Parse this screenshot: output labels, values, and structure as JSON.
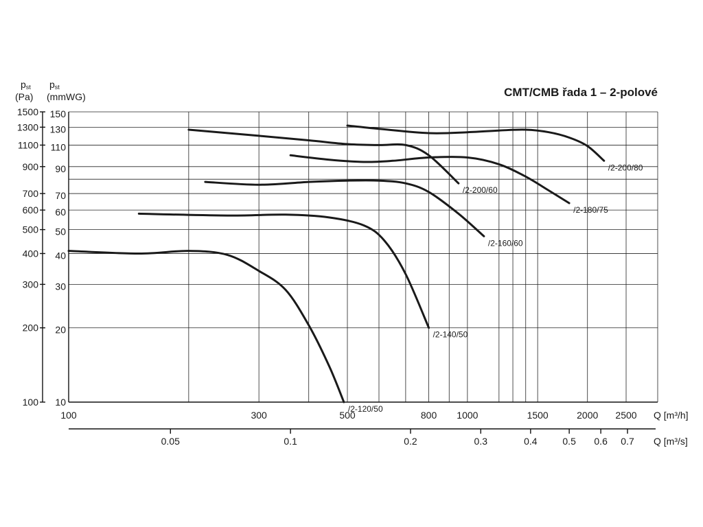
{
  "chart_data": {
    "type": "line",
    "title": "CMT/CMB řada 1 – 2-polové",
    "x_scale": "log",
    "y_scale": "log",
    "grid": true,
    "y_axis_pa": {
      "label_sym": "p",
      "label_sub": "st",
      "label_unit": "(Pa)",
      "range": [
        100,
        1500
      ],
      "ticks": [
        "1500",
        "1300",
        "1100",
        "900",
        "700",
        "600",
        "500",
        "400",
        "300",
        "200",
        "100"
      ]
    },
    "y_axis_mmwg": {
      "label_sym": "p",
      "label_sub": "st",
      "label_unit": "(mmWG)",
      "range": [
        10,
        150
      ],
      "ticks": [
        "150",
        "130",
        "110",
        "90",
        "70",
        "60",
        "50",
        "40",
        "30",
        "20",
        "10"
      ]
    },
    "x_axis_m3h": {
      "label": "Q [m³/h]",
      "range": [
        100,
        3000
      ],
      "ticks": [
        "100",
        "300",
        "500",
        "800",
        "1000",
        "1500",
        "2000",
        "2500"
      ]
    },
    "x_axis_m3s": {
      "label": "Q [m³/s]",
      "ticks": [
        "0.05",
        "0.1",
        "0.2",
        "0.3",
        "0.4",
        "0.5",
        "0.6",
        "0.7"
      ]
    },
    "series": [
      {
        "name": "/2-120/50",
        "x": [
          100,
          150,
          200,
          250,
          300,
          350,
          400,
          450,
          490
        ],
        "y": [
          410,
          400,
          410,
          395,
          340,
          285,
          205,
          140,
          100
        ]
      },
      {
        "name": "/2-140/50",
        "x": [
          150,
          250,
          350,
          450,
          550,
          620,
          700,
          800
        ],
        "y": [
          580,
          570,
          575,
          560,
          520,
          450,
          330,
          200
        ]
      },
      {
        "name": "/2-160/60",
        "x": [
          220,
          300,
          400,
          500,
          600,
          700,
          800,
          950,
          1100
        ],
        "y": [
          780,
          760,
          780,
          790,
          790,
          770,
          710,
          580,
          470
        ]
      },
      {
        "name": "/2-200/60",
        "x": [
          200,
          300,
          400,
          500,
          600,
          700,
          800,
          950
        ],
        "y": [
          1270,
          1200,
          1150,
          1110,
          1100,
          1100,
          1000,
          770
        ]
      },
      {
        "name": "/2-180/75",
        "x": [
          360,
          450,
          550,
          650,
          800,
          1000,
          1200,
          1400,
          1600,
          1800
        ],
        "y": [
          1000,
          960,
          940,
          950,
          980,
          980,
          920,
          820,
          720,
          640
        ]
      },
      {
        "name": "/2-200/80",
        "x": [
          500,
          600,
          800,
          1000,
          1200,
          1400,
          1600,
          1800,
          2000,
          2200
        ],
        "y": [
          1320,
          1280,
          1230,
          1240,
          1260,
          1270,
          1240,
          1180,
          1090,
          950
        ]
      }
    ]
  }
}
